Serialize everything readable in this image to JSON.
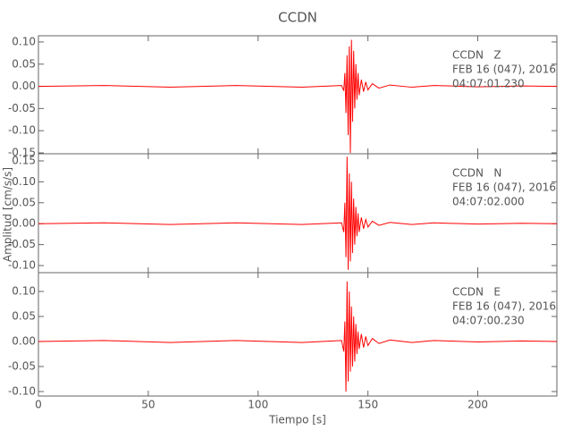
{
  "chart_data": [
    {
      "type": "line",
      "title": "CCDN",
      "color": "#ff0000",
      "annotations": [
        "CCDN   Z",
        "FEB 16 (047), 2016",
        "04:07:01.230"
      ],
      "xlim": [
        0,
        236
      ],
      "ylim": [
        -0.152,
        0.114
      ],
      "yticks": [
        {
          "value": 0.1,
          "label": "0.10"
        },
        {
          "value": 0.05,
          "label": "0.05"
        },
        {
          "value": 0,
          "label": "0.00"
        },
        {
          "value": -0.05,
          "label": "-0.05"
        },
        {
          "value": -0.1,
          "label": "-0.10"
        },
        {
          "value": -0.15,
          "label": "-0.15"
        }
      ],
      "x": [
        0,
        30,
        60,
        90,
        120,
        138,
        139,
        139.5,
        140,
        140.5,
        141,
        141.5,
        142,
        142.5,
        143,
        143.5,
        144,
        144.5,
        145,
        145.5,
        146,
        147,
        148,
        149,
        150,
        152,
        155,
        160,
        170,
        180,
        200,
        220,
        236
      ],
      "values": [
        0,
        0.002,
        -0.002,
        0.002,
        -0.002,
        0.002,
        -0.01,
        0.03,
        -0.06,
        0.07,
        -0.11,
        0.09,
        -0.15,
        0.105,
        -0.08,
        0.08,
        -0.05,
        0.05,
        -0.03,
        0.03,
        -0.02,
        0.015,
        -0.012,
        0.01,
        -0.008,
        0.006,
        -0.004,
        0.003,
        -0.002,
        0.002,
        -0.001,
        0.001,
        0
      ]
    },
    {
      "type": "line",
      "ylabel": "Amplitud [cm/s/s]",
      "color": "#ff0000",
      "annotations": [
        "CCDN   N",
        "FEB 16 (047), 2016",
        "04:07:02.000"
      ],
      "xlim": [
        0,
        236
      ],
      "ylim": [
        -0.117,
        0.167
      ],
      "yticks": [
        {
          "value": 0.15,
          "label": "0.15"
        },
        {
          "value": 0.1,
          "label": "0.10"
        },
        {
          "value": 0.05,
          "label": "0.05"
        },
        {
          "value": 0,
          "label": "0.00"
        },
        {
          "value": -0.05,
          "label": "-0.05"
        },
        {
          "value": -0.1,
          "label": "-0.10"
        }
      ],
      "x": [
        0,
        30,
        60,
        90,
        120,
        138,
        139,
        139.5,
        140,
        140.5,
        141,
        141.5,
        142,
        142.5,
        143,
        143.5,
        144,
        144.5,
        145,
        145.5,
        146,
        147,
        148,
        149,
        150,
        152,
        155,
        160,
        170,
        180,
        200,
        220,
        236
      ],
      "values": [
        0,
        0.002,
        -0.002,
        0.002,
        -0.002,
        0.002,
        -0.02,
        0.05,
        -0.08,
        0.16,
        -0.11,
        0.12,
        -0.09,
        0.1,
        -0.07,
        0.06,
        -0.05,
        0.04,
        -0.03,
        0.025,
        -0.02,
        0.015,
        -0.012,
        0.01,
        -0.008,
        0.006,
        -0.004,
        0.003,
        -0.002,
        0.002,
        -0.001,
        0.001,
        0
      ]
    },
    {
      "type": "line",
      "xlabel": "Tiempo [s]",
      "color": "#ff0000",
      "annotations": [
        "CCDN   E",
        "FEB 16 (047), 2016",
        "04:07:00.230"
      ],
      "xlim": [
        0,
        236
      ],
      "ylim": [
        -0.109,
        0.1375
      ],
      "xticks": [
        0,
        50,
        100,
        150,
        200
      ],
      "yticks": [
        {
          "value": 0.1,
          "label": "0.10"
        },
        {
          "value": 0.05,
          "label": "0.05"
        },
        {
          "value": 0,
          "label": "0.00"
        },
        {
          "value": -0.05,
          "label": "-0.05"
        },
        {
          "value": -0.1,
          "label": "-0.10"
        }
      ],
      "x": [
        0,
        30,
        60,
        90,
        120,
        138,
        139,
        139.5,
        140,
        140.5,
        141,
        141.5,
        142,
        142.5,
        143,
        143.5,
        144,
        144.5,
        145,
        145.5,
        146,
        147,
        148,
        149,
        150,
        152,
        155,
        160,
        170,
        180,
        200,
        220,
        236
      ],
      "values": [
        0,
        0.002,
        -0.002,
        0.002,
        -0.002,
        0.002,
        -0.02,
        0.04,
        -0.1,
        0.12,
        -0.08,
        0.1,
        -0.06,
        0.07,
        -0.05,
        0.05,
        -0.04,
        0.035,
        -0.025,
        0.02,
        -0.015,
        0.015,
        -0.012,
        0.01,
        -0.008,
        0.006,
        -0.004,
        0.003,
        -0.002,
        0.002,
        -0.001,
        0.001,
        0
      ]
    }
  ]
}
